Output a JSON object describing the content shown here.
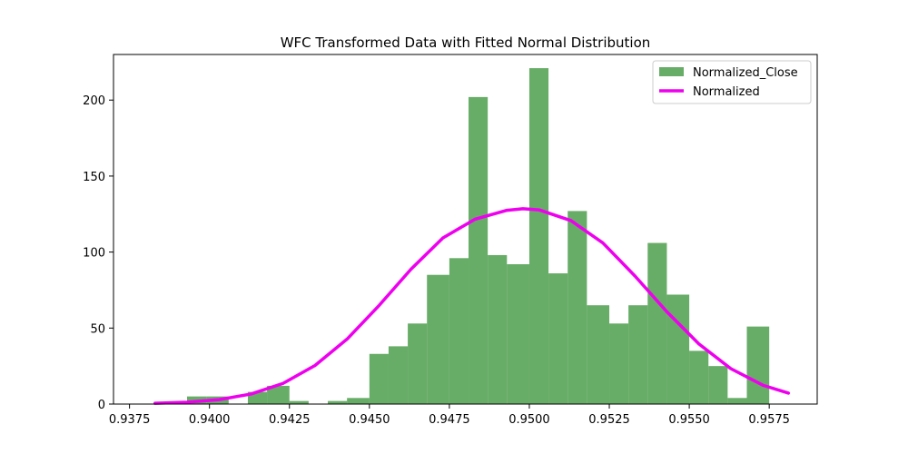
{
  "chart_data": {
    "type": "bar",
    "title": "WFC Transformed Data with Fitted Normal Distribution",
    "xlabel": "",
    "ylabel": "",
    "xlim": [
      0.937,
      0.959
    ],
    "ylim": [
      0,
      230
    ],
    "x_ticks": [
      0.9375,
      0.94,
      0.9425,
      0.945,
      0.9475,
      0.95,
      0.9525,
      0.955,
      0.9575
    ],
    "x_tick_labels": [
      "0.9375",
      "0.9400",
      "0.9425",
      "0.9450",
      "0.9475",
      "0.9500",
      "0.9525",
      "0.9550",
      "0.9575"
    ],
    "y_ticks": [
      0,
      50,
      100,
      150,
      200
    ],
    "y_tick_labels": [
      "0",
      "50",
      "100",
      "150",
      "200"
    ],
    "grid": false,
    "legend_position": "top-right",
    "histogram": {
      "name": "Normalized_Close",
      "color": "#4c9e4c",
      "bin_edges": [
        0.9393,
        0.9399,
        0.9406,
        0.9412,
        0.9418,
        0.9425,
        0.9431,
        0.9437,
        0.9443,
        0.945,
        0.9456,
        0.9462,
        0.9468,
        0.9475,
        0.9481,
        0.9487,
        0.9493,
        0.95,
        0.9506,
        0.9512,
        0.9518,
        0.9525,
        0.9531,
        0.9537,
        0.9543,
        0.955,
        0.9556,
        0.9562,
        0.9568,
        0.9575
      ],
      "counts": [
        5,
        5,
        0,
        8,
        12,
        2,
        0,
        2,
        4,
        33,
        38,
        53,
        85,
        96,
        202,
        98,
        92,
        221,
        86,
        127,
        65,
        53,
        65,
        106,
        72,
        35,
        25,
        4,
        51
      ]
    },
    "series": [
      {
        "name": "Normalized",
        "type": "line",
        "color": "#ee00ee",
        "x": [
          0.9383,
          0.9393,
          0.9403,
          0.9413,
          0.9423,
          0.9433,
          0.9443,
          0.9453,
          0.9463,
          0.9473,
          0.9483,
          0.9493,
          0.9498,
          0.9503,
          0.9513,
          0.9523,
          0.9533,
          0.9543,
          0.9553,
          0.9563,
          0.9573,
          0.9581
        ],
        "y": [
          0.5,
          1.2,
          2.9,
          6.6,
          13.6,
          25.4,
          42.7,
          64.8,
          88.7,
          109.3,
          121.6,
          127.5,
          128.5,
          127.8,
          120.7,
          106.0,
          84.3,
          60.7,
          39.6,
          23.3,
          12.4,
          7.2
        ]
      }
    ]
  }
}
